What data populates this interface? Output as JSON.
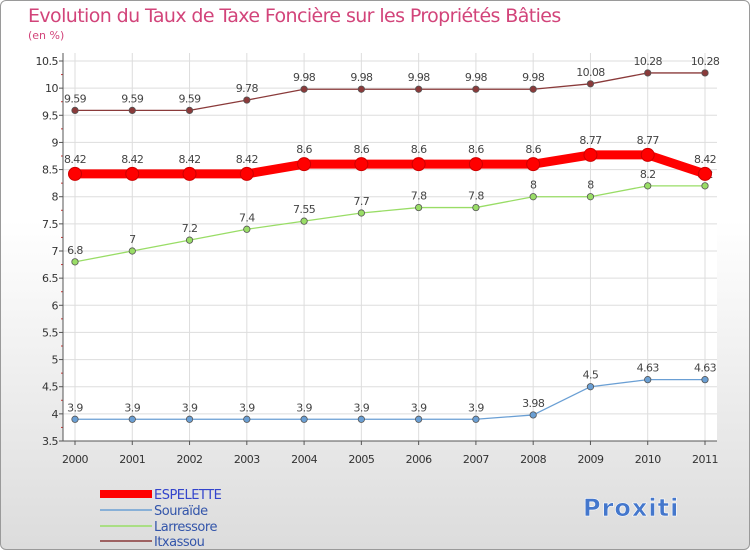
{
  "title": "Evolution du Taux de Taxe Foncière sur les Propriétés Bâties",
  "unit_label": "(en %)",
  "logo_text": "Proxiti",
  "chart_data": {
    "type": "line",
    "title": "Evolution du Taux de Taxe Foncière sur les Propriétés Bâties",
    "ylabel": "(en %)",
    "x": [
      "2000",
      "2001",
      "2002",
      "2003",
      "2004",
      "2005",
      "2006",
      "2007",
      "2008",
      "2009",
      "2010",
      "2011"
    ],
    "ylim": [
      3.5,
      10.5
    ],
    "yticks": [
      3.5,
      4,
      4.5,
      5,
      5.5,
      6,
      6.5,
      7,
      7.5,
      8,
      8.5,
      9,
      9.5,
      10,
      10.5
    ],
    "grid": true,
    "legend_position": "bottom-left",
    "series": [
      {
        "name": "ESPELETTE",
        "color": "#ff0000",
        "values": [
          8.42,
          8.42,
          8.42,
          8.42,
          8.6,
          8.6,
          8.6,
          8.6,
          8.6,
          8.77,
          8.77,
          8.42
        ],
        "labels": [
          "8.42",
          "8.42",
          "8.42",
          "8.42",
          "8.6",
          "8.6",
          "8.6",
          "8.6",
          "8.6",
          "8.77",
          "8.77",
          "8.42"
        ]
      },
      {
        "name": "Souraïde",
        "color": "#6a9fd4",
        "values": [
          3.9,
          3.9,
          3.9,
          3.9,
          3.9,
          3.9,
          3.9,
          3.9,
          3.98,
          4.5,
          4.63,
          4.63
        ],
        "labels": [
          "3.9",
          "3.9",
          "3.9",
          "3.9",
          "3.9",
          "3.9",
          "3.9",
          "3.9",
          "3.98",
          "4.5",
          "4.63",
          "4.63"
        ]
      },
      {
        "name": "Larressore",
        "color": "#99dd66",
        "values": [
          6.8,
          7,
          7.2,
          7.4,
          7.55,
          7.7,
          7.8,
          7.8,
          8,
          8,
          8.2,
          8.2
        ],
        "labels": [
          "6.8",
          "7",
          "7.2",
          "7.4",
          "7.55",
          "7.7",
          "7.8",
          "7.8",
          "8",
          "8",
          "8.2",
          "8.2"
        ]
      },
      {
        "name": "Itxassou",
        "color": "#8a3a3a",
        "values": [
          9.59,
          9.59,
          9.59,
          9.78,
          9.98,
          9.98,
          9.98,
          9.98,
          9.98,
          10.08,
          10.28,
          10.28
        ],
        "labels": [
          "9.59",
          "9.59",
          "9.59",
          "9.78",
          "9.98",
          "9.98",
          "9.98",
          "9.98",
          "9.98",
          "10.08",
          "10.28",
          "10.28"
        ]
      }
    ]
  }
}
